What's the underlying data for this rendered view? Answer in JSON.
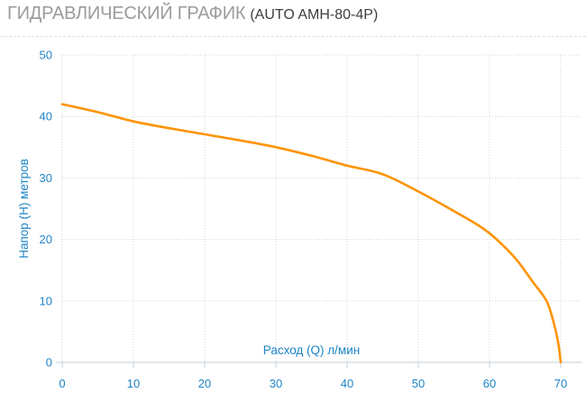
{
  "header": {
    "title": "ГИДРАВЛИЧЕСКИЙ ГРАФИК",
    "subtitle": "(AUTO AMH-80-4P)"
  },
  "colors": {
    "label_blue": "#1c84c6",
    "curve_orange": "#fe9300",
    "grid_gray": "#d4d4d4",
    "axis_gray": "#c3cfd8",
    "title_gray": "#9b9b9b",
    "subtitle_dark": "#3d3d3d"
  },
  "chart_data": {
    "type": "line",
    "title": "",
    "xlabel": "Расход (Q) л/мин",
    "ylabel": "Напор (H) метров",
    "xlim": [
      0,
      70
    ],
    "ylim": [
      0,
      50
    ],
    "xticks": [
      0,
      10,
      20,
      30,
      40,
      50,
      60,
      70
    ],
    "yticks": [
      0,
      10,
      20,
      30,
      40,
      50
    ],
    "grid": true,
    "legend": false,
    "series": [
      {
        "x": [
          0,
          5,
          10,
          15,
          20,
          25,
          30,
          35,
          40,
          45,
          50,
          55,
          58,
          60,
          62,
          64,
          66,
          68,
          69,
          69.6,
          70
        ],
        "y": [
          42,
          40.7,
          39.2,
          38.1,
          37.1,
          36.1,
          35,
          33.6,
          32,
          30.6,
          27.8,
          24.6,
          22.6,
          21,
          18.9,
          16.4,
          13.2,
          10,
          6.5,
          3.5,
          0
        ]
      }
    ]
  }
}
